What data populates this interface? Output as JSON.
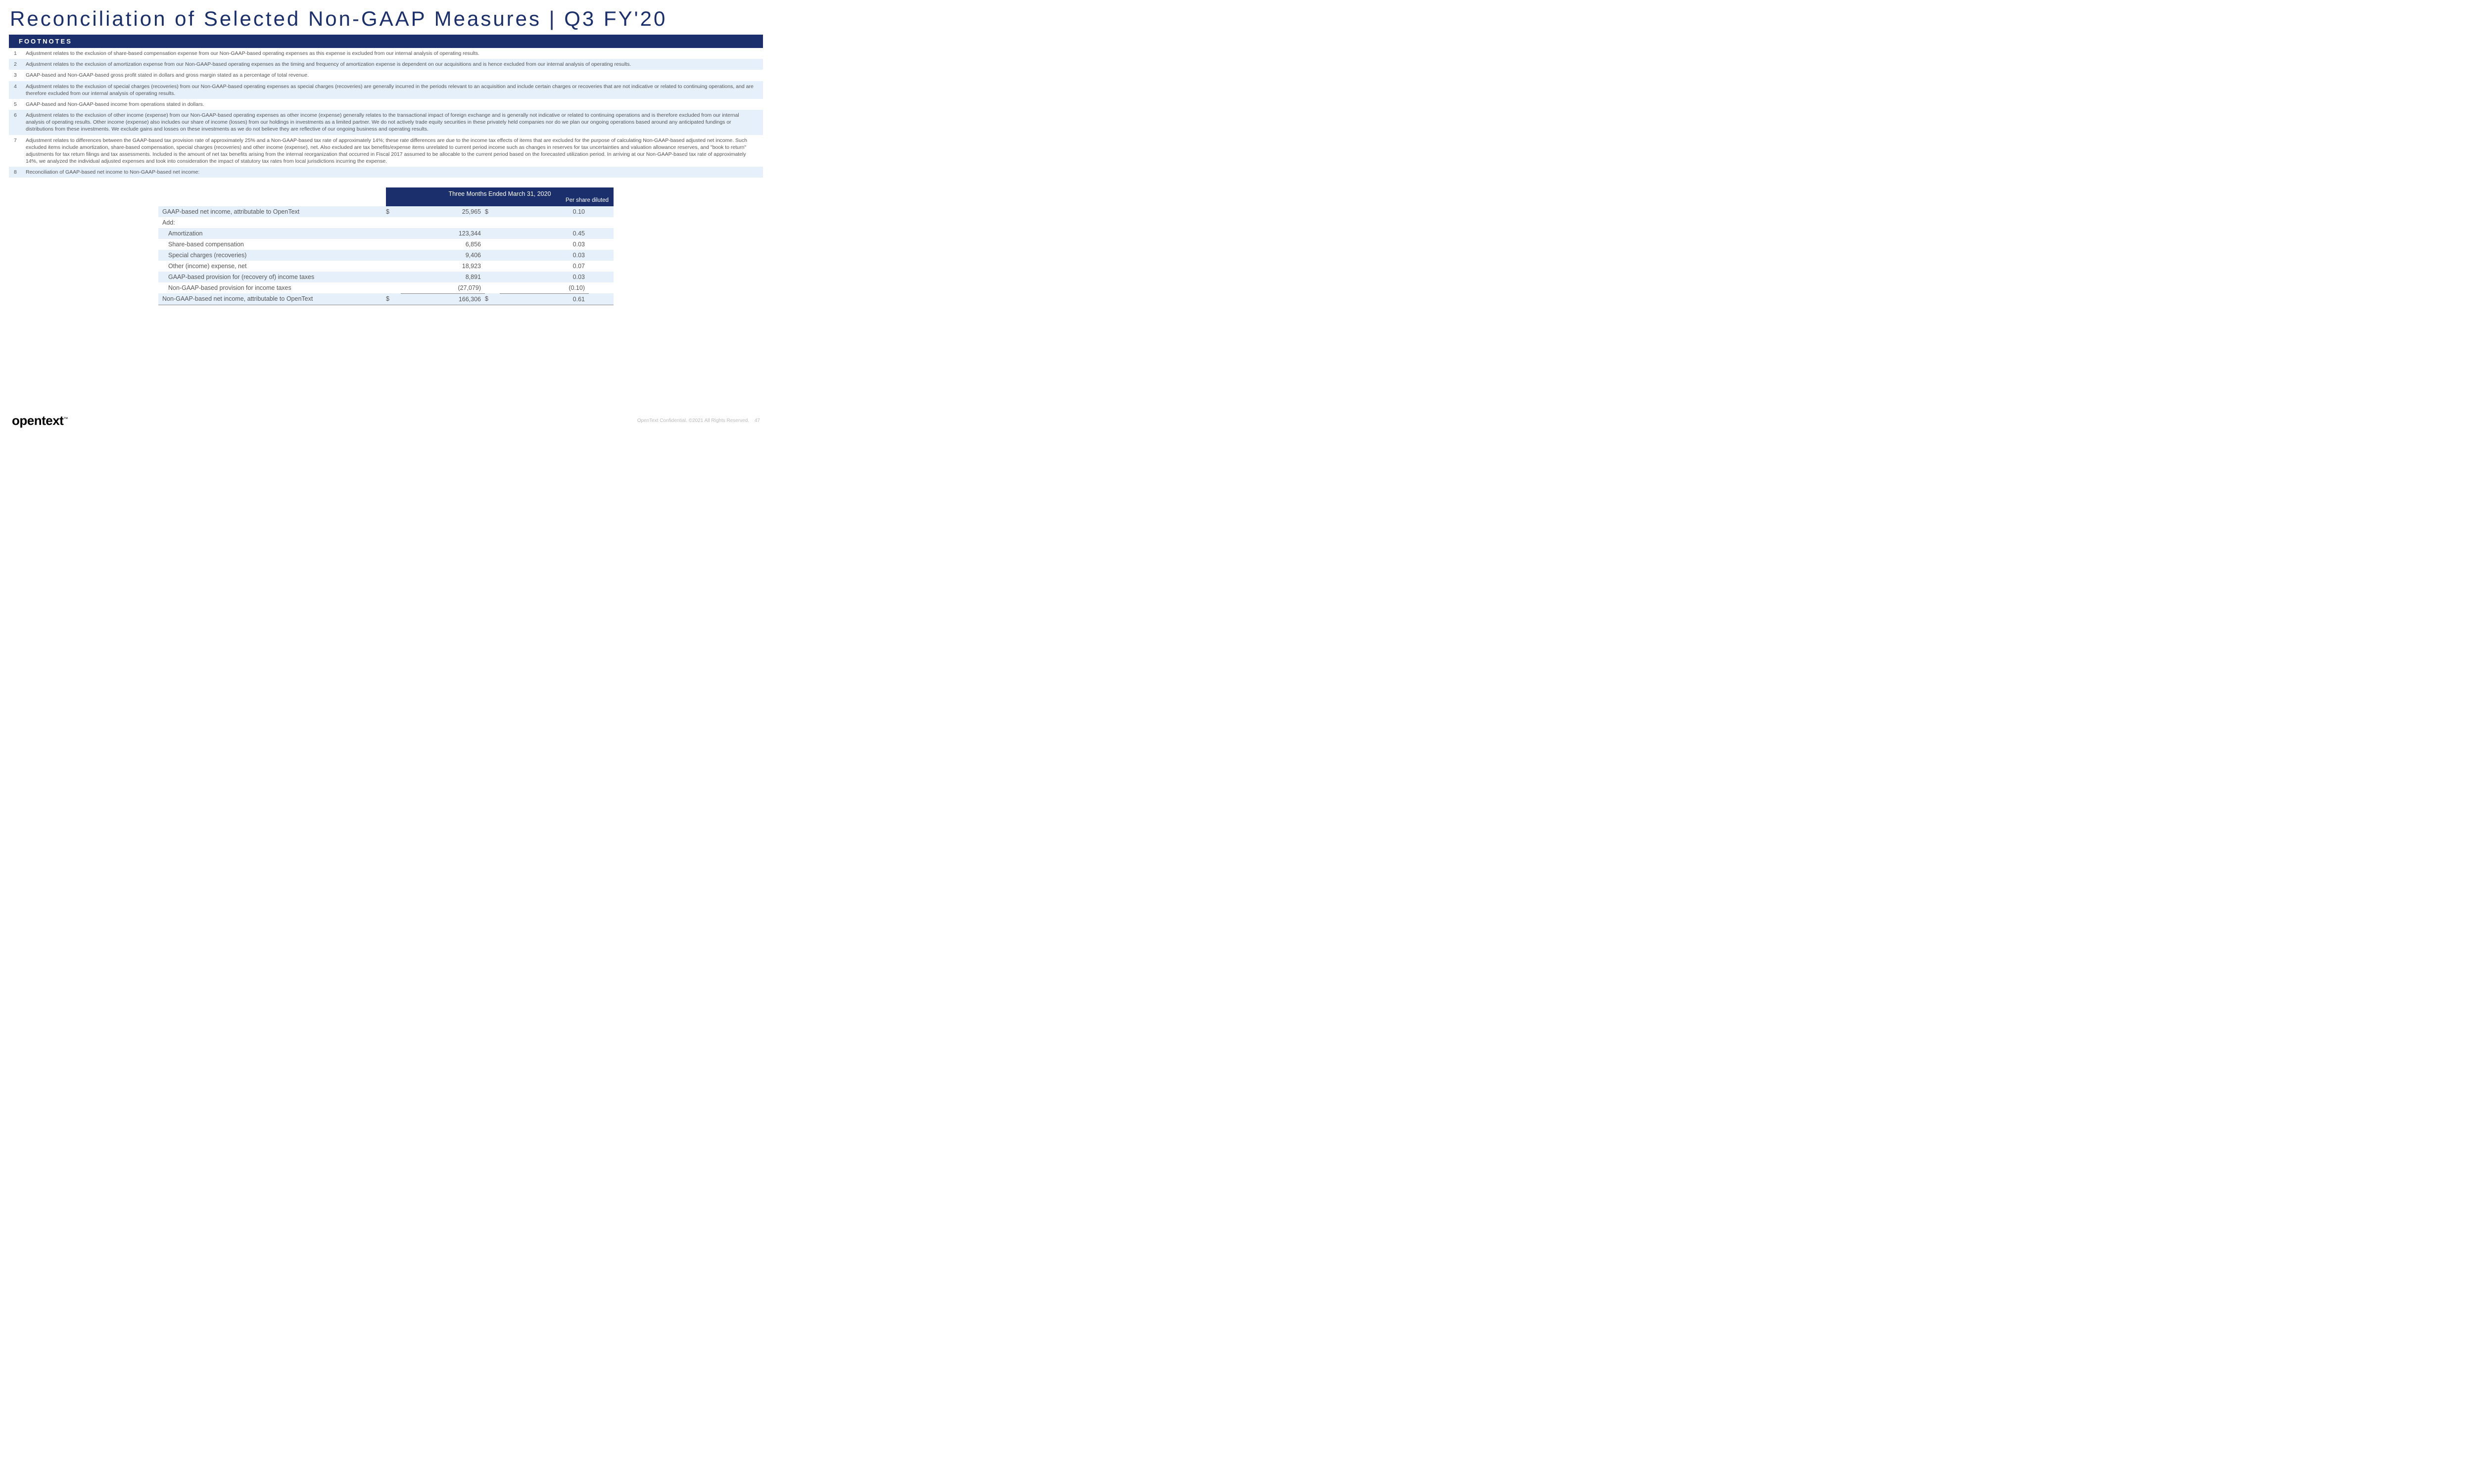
{
  "title": "Reconciliation of Selected Non-GAAP Measures | Q3 FY'20",
  "sectionHeader": "FOOTNOTES",
  "footnotes": [
    {
      "n": "1",
      "t": "Adjustment relates to the exclusion of share-based compensation expense from our Non-GAAP-based operating expenses as this expense is excluded from our internal analysis of operating results."
    },
    {
      "n": "2",
      "t": "Adjustment relates to the exclusion of amortization expense from our Non-GAAP-based operating expenses as the timing and frequency of amortization expense is dependent on our acquisitions and is hence excluded from our internal analysis of operating results."
    },
    {
      "n": "3",
      "t": "GAAP-based and Non-GAAP-based gross profit stated in dollars and gross margin stated as a percentage of total revenue."
    },
    {
      "n": "4",
      "t": "Adjustment relates to the exclusion of special charges (recoveries) from our Non-GAAP-based operating expenses as special charges (recoveries) are generally incurred in the periods relevant to an acquisition and include certain charges or recoveries that are not indicative or related to continuing operations, and are therefore excluded from our internal analysis of operating results."
    },
    {
      "n": "5",
      "t": "GAAP-based and Non-GAAP-based income from operations stated in dollars."
    },
    {
      "n": "6",
      "t": "Adjustment relates to the exclusion of other income (expense) from our Non-GAAP-based operating expenses as other income (expense) generally relates to the transactional impact of foreign exchange and is generally not indicative or related to continuing operations and is therefore excluded from our internal analysis of operating results. Other income (expense) also includes our share of income (losses) from our holdings in investments as a limited partner. We do not actively trade equity securities in these privately held companies nor do we plan our ongoing operations based around any anticipated fundings or distributions from these investments. We exclude gains and losses on these investments as we do not believe they are reflective of our ongoing business and operating results."
    },
    {
      "n": "7",
      "t": "Adjustment relates to differences between the GAAP-based tax provision rate of approximately 25% and a Non-GAAP-based tax rate of approximately 14%; these rate differences are due to the income tax effects of items that are excluded for the purpose of calculating Non-GAAP-based adjusted net income. Such excluded items include amortization, share-based compensation, special charges (recoveries) and other income (expense), net. Also excluded are tax benefits/expense items unrelated to current period income such as changes in reserves for tax uncertainties and valuation allowance reserves, and \"book to return\" adjustments for tax return filings and tax assessments. Included is the amount of net tax benefits arising from the internal reorganization that occurred in Fiscal 2017 assumed to be allocable to the current period based on the forecasted utilization period. In arriving at our Non-GAAP-based tax rate of approximately 14%, we analyzed the individual adjusted expenses and took into consideration the impact of statutory tax rates from local jurisdictions incurring the expense."
    },
    {
      "n": "8",
      "t": "Reconciliation of GAAP-based net income to Non-GAAP-based net income:"
    }
  ],
  "table": {
    "header1": "Three Months Ended March 31, 2020",
    "header2": "Per share diluted",
    "rows": [
      {
        "label": "GAAP-based net income, attributable to OpenText",
        "s1": "$",
        "v1": "25,965",
        "s2": "$",
        "v2": "0.10",
        "alt": true
      },
      {
        "label": "Add:",
        "s1": "",
        "v1": "",
        "s2": "",
        "v2": "",
        "alt": false
      },
      {
        "label": "Amortization",
        "s1": "",
        "v1": "123,344",
        "s2": "",
        "v2": "0.45",
        "alt": true,
        "indent": true
      },
      {
        "label": "Share-based compensation",
        "s1": "",
        "v1": "6,856",
        "s2": "",
        "v2": "0.03",
        "alt": false,
        "indent": true
      },
      {
        "label": "Special charges (recoveries)",
        "s1": "",
        "v1": "9,406",
        "s2": "",
        "v2": "0.03",
        "alt": true,
        "indent": true
      },
      {
        "label": "Other (income) expense, net",
        "s1": "",
        "v1": "18,923",
        "s2": "",
        "v2": "0.07",
        "alt": false,
        "indent": true
      },
      {
        "label": "GAAP-based provision for (recovery of) income taxes",
        "s1": "",
        "v1": "8,891",
        "s2": "",
        "v2": "0.03",
        "alt": true,
        "indent": true
      },
      {
        "label": "Non-GAAP-based provision for income taxes",
        "s1": "",
        "v1": "(27,079)",
        "s2": "",
        "v2": "(0.10)",
        "alt": false,
        "indent": true
      },
      {
        "label": "Non-GAAP-based net income, attributable to OpenText",
        "s1": "$",
        "v1": "166,306",
        "s2": "$",
        "v2": "0.61",
        "alt": true,
        "total": true
      }
    ]
  },
  "footer": {
    "logo": "opentext",
    "tm": "™",
    "confidential": "OpenText Confidential. ©2021 All Rights Reserved.",
    "page": "47"
  },
  "colors": {
    "brandNavy": "#1a2f6b",
    "rowAlt": "#e6f0fa",
    "textGray": "#555555",
    "footerGray": "#bbbbbb"
  }
}
